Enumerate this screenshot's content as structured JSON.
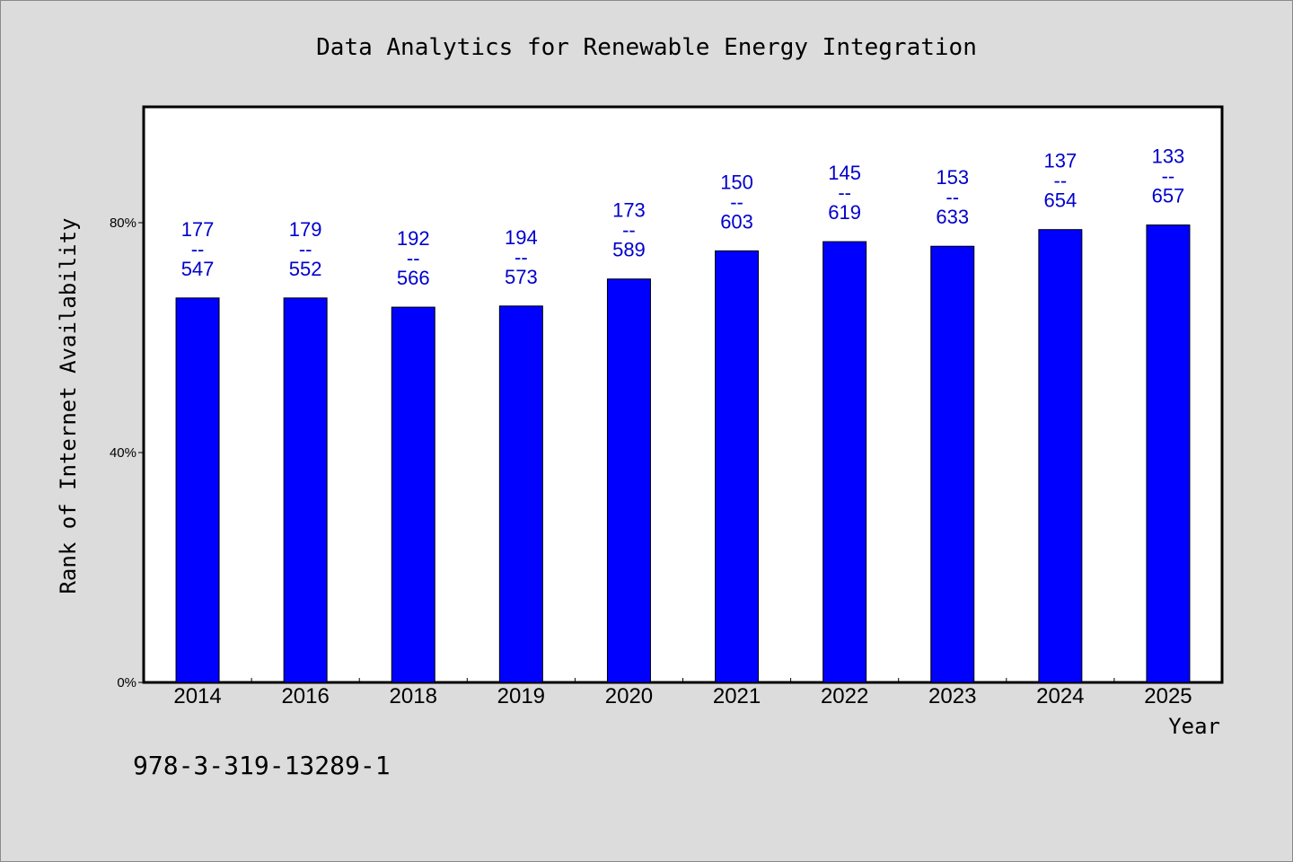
{
  "chart_data": {
    "type": "bar",
    "title": "Data Analytics for Renewable Energy Integration",
    "xlabel": "Year",
    "ylabel": "Rank of Internet Availability",
    "categories": [
      "2014",
      "2016",
      "2018",
      "2019",
      "2020",
      "2021",
      "2022",
      "2023",
      "2024",
      "2025"
    ],
    "values": [
      66.9,
      66.9,
      65.3,
      65.5,
      70.2,
      75.1,
      76.7,
      75.9,
      78.8,
      79.6
    ],
    "value_unit": "%",
    "ylim": [
      0,
      100
    ],
    "yticks": [
      0,
      40,
      80
    ],
    "ytick_labels": [
      "0%",
      "40%",
      "80%"
    ],
    "data_labels": [
      {
        "top": "177",
        "sep": "--",
        "bottom": "547"
      },
      {
        "top": "179",
        "sep": "--",
        "bottom": "552"
      },
      {
        "top": "192",
        "sep": "--",
        "bottom": "566"
      },
      {
        "top": "194",
        "sep": "--",
        "bottom": "573"
      },
      {
        "top": "173",
        "sep": "--",
        "bottom": "589"
      },
      {
        "top": "150",
        "sep": "--",
        "bottom": "603"
      },
      {
        "top": "145",
        "sep": "--",
        "bottom": "619"
      },
      {
        "top": "153",
        "sep": "--",
        "bottom": "633"
      },
      {
        "top": "137",
        "sep": "--",
        "bottom": "654"
      },
      {
        "top": "133",
        "sep": "--",
        "bottom": "657"
      }
    ],
    "grid": false,
    "colors": {
      "bar": "#0000ff",
      "label": "#0000cc",
      "background": "#dcdcdc",
      "plot_background": "#ffffff"
    }
  },
  "footer": {
    "isbn": "978-3-319-13289-1"
  }
}
